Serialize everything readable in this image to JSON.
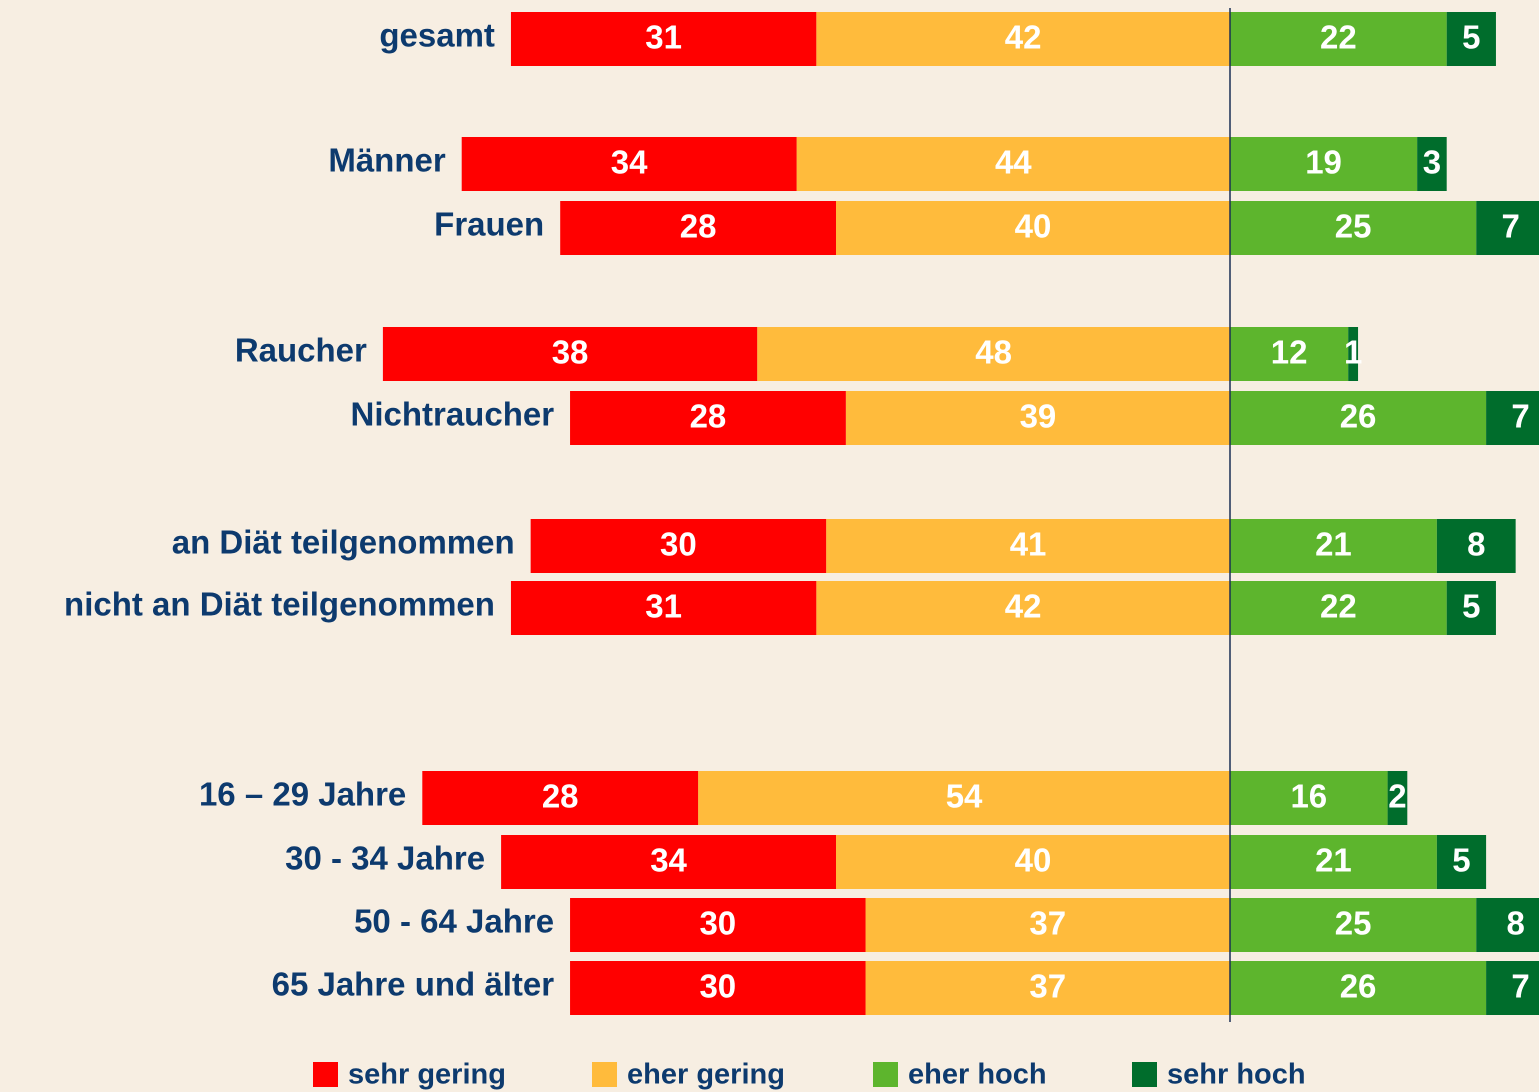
{
  "chart_data": {
    "type": "diverging_bar",
    "categories": [
      "gesamt",
      "Männer",
      "Frauen",
      "Raucher",
      "Nichtraucher",
      "an Diät teilgenommen",
      "nicht an Diät teilgenommen",
      "16 – 29 Jahre",
      "30 - 34 Jahre",
      "50 - 64 Jahre",
      "65 Jahre und älter"
    ],
    "series": [
      {
        "name": "sehr gering",
        "color": "#ff0000",
        "values": [
          31,
          34,
          28,
          38,
          28,
          30,
          31,
          28,
          34,
          30,
          30
        ]
      },
      {
        "name": "eher gering",
        "color": "#ffbb3c",
        "values": [
          42,
          44,
          40,
          48,
          39,
          41,
          42,
          54,
          40,
          37,
          37
        ]
      },
      {
        "name": "eher hoch",
        "color": "#5db52d",
        "values": [
          22,
          19,
          25,
          12,
          26,
          21,
          22,
          16,
          21,
          25,
          26
        ]
      },
      {
        "name": "sehr hoch",
        "color": "#006d2c",
        "values": [
          5,
          3,
          7,
          1,
          7,
          8,
          5,
          2,
          5,
          8,
          7
        ]
      }
    ]
  }
}
